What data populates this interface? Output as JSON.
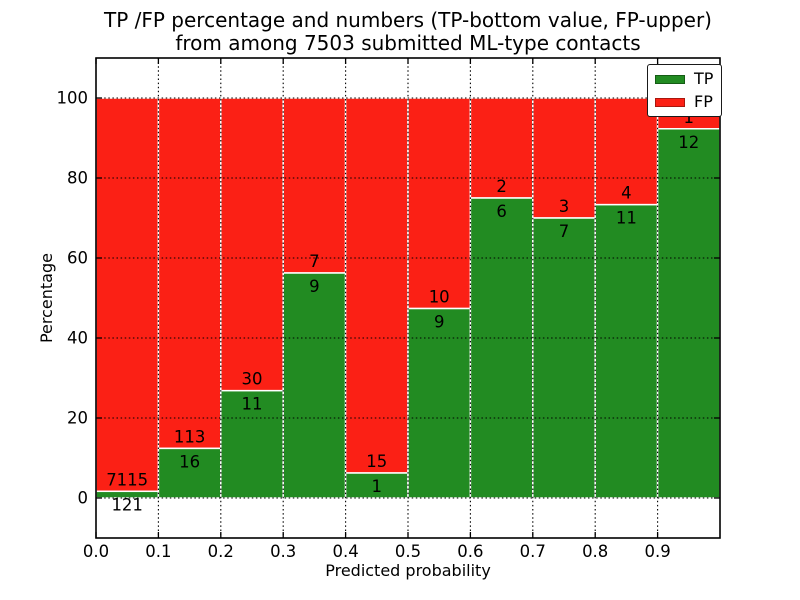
{
  "figure": {
    "title_line1": "TP /FP percentage and numbers (TP-bottom value, FP-upper)",
    "title_line2": "from among 7503 submitted ML-type contacts",
    "background": "#ffffff"
  },
  "axes": {
    "x_label": "Predicted probability",
    "y_label": "Percentage",
    "x_tick_labels": [
      "0.0",
      "0.1",
      "0.2",
      "0.3",
      "0.4",
      "0.5",
      "0.6",
      "0.7",
      "0.8",
      "0.9"
    ],
    "x_ticks": [
      0.0,
      0.1,
      0.2,
      0.3,
      0.4,
      0.5,
      0.6,
      0.7,
      0.8,
      0.9
    ],
    "y_tick_labels": [
      "0",
      "20",
      "40",
      "60",
      "80",
      "100"
    ],
    "y_ticks": [
      0,
      20,
      40,
      60,
      80,
      100
    ],
    "xlim": [
      0.0,
      1.0
    ],
    "ylim": [
      -10,
      110
    ],
    "grid_style": "dotted",
    "grid_color": "#000000"
  },
  "legend": {
    "position": "upper right",
    "items": [
      {
        "label": "TP",
        "color": "#228b22",
        "edge": "#155c15"
      },
      {
        "label": "FP",
        "color": "#fb2015",
        "edge": "#a8170e"
      }
    ]
  },
  "chart_data": {
    "type": "bar",
    "stacked": true,
    "normalized_to_percent": true,
    "title": "TP /FP percentage and numbers (TP-bottom value, FP-upper) from among 7503 submitted ML-type contacts",
    "xlabel": "Predicted probability",
    "ylabel": "Percentage",
    "total_contacts": 7503,
    "bin_width": 0.1,
    "bin_starts": [
      0.0,
      0.1,
      0.2,
      0.3,
      0.4,
      0.5,
      0.6,
      0.7,
      0.8,
      0.9
    ],
    "series": [
      {
        "name": "TP",
        "color": "#228b22",
        "counts": [
          121,
          16,
          11,
          9,
          1,
          9,
          6,
          7,
          11,
          12
        ]
      },
      {
        "name": "FP",
        "color": "#fb2015",
        "counts": [
          7115,
          113,
          30,
          7,
          15,
          10,
          2,
          3,
          4,
          1
        ]
      }
    ],
    "tp_percent": [
      1.67,
      12.4,
      26.83,
      56.25,
      6.25,
      47.37,
      75.0,
      70.0,
      73.33,
      92.31
    ],
    "fp_percent": [
      98.33,
      87.6,
      73.17,
      43.75,
      93.75,
      52.63,
      25.0,
      30.0,
      26.67,
      7.69
    ],
    "ylim": [
      -10,
      110
    ],
    "legend_entries": [
      "TP",
      "FP"
    ],
    "grid": true
  },
  "style": {
    "bar_edge_color": "#ffffff",
    "spine_color": "#000000",
    "text_color": "#000000"
  }
}
